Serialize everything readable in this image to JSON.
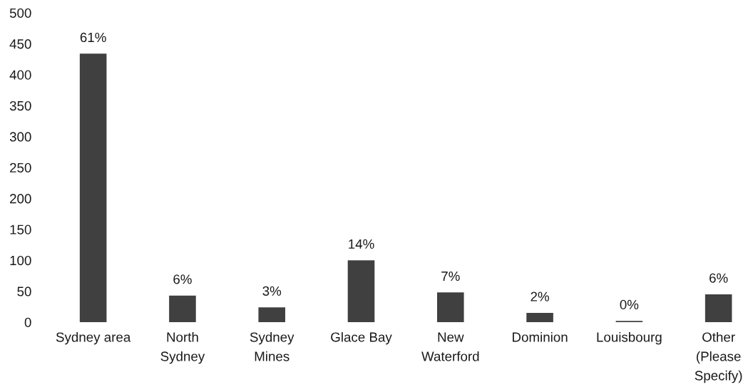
{
  "chart_data": {
    "type": "bar",
    "categories": [
      "Sydney area",
      "North\nSydney",
      "Sydney\nMines",
      "Glace Bay",
      "New\nWaterford",
      "Dominion",
      "Louisbourg",
      "Other\n(Please\nSpecify)"
    ],
    "values": [
      434,
      43,
      24,
      100,
      48,
      15,
      2,
      45
    ],
    "color": "#404040",
    "annotations": [
      {
        "text": "61%",
        "x": "Sydney area",
        "y": 434
      },
      {
        "text": "6%",
        "x": "North\nSydney",
        "y": 43
      },
      {
        "text": "3%",
        "x": "Sydney\nMines",
        "y": 24
      },
      {
        "text": "14%",
        "x": "Glace Bay",
        "y": 100
      },
      {
        "text": "7%",
        "x": "New\nWaterford",
        "y": 48
      },
      {
        "text": "2%",
        "x": "Dominion",
        "y": 15
      },
      {
        "text": "0%",
        "x": "Louisbourg",
        "y": 2
      },
      {
        "text": "6%",
        "x": "Other\n(Please\nSpecify)",
        "y": 45
      }
    ],
    "ylim": [
      0,
      500
    ],
    "yticks": [
      0,
      50,
      100,
      150,
      200,
      250,
      300,
      350,
      400,
      450,
      500
    ]
  }
}
